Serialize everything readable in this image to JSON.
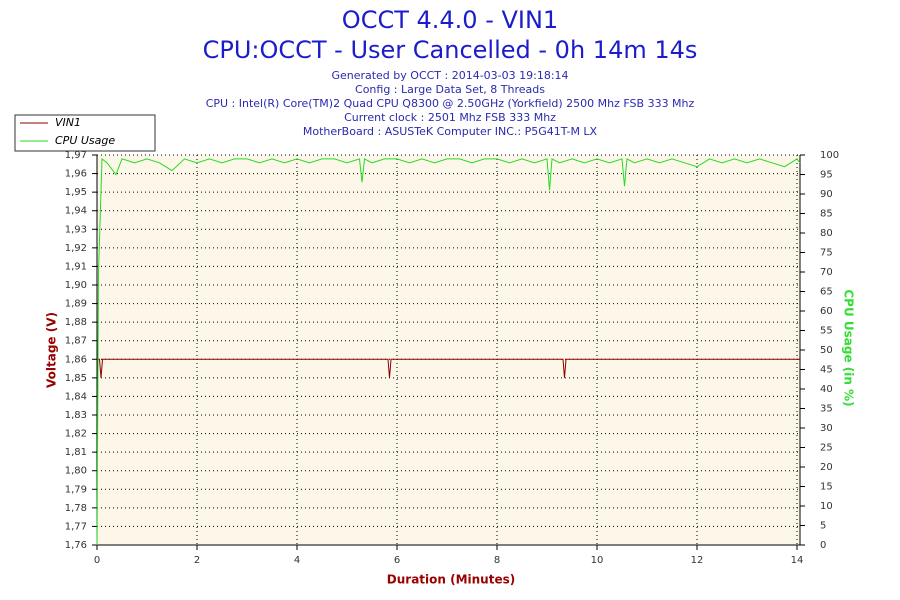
{
  "chart_data": {
    "type": "line",
    "title": "OCCT 4.4.0 - VIN1",
    "subtitle": "CPU:OCCT - User Cancelled - 0h 14m 14s",
    "info": [
      "Generated by OCCT : 2014-03-03 19:18:14",
      "Config : Large Data Set, 8 Threads",
      "CPU : Intel(R) Core(TM)2 Quad CPU Q8300 @ 2.50GHz (Yorkfield) 2500 Mhz FSB 333 Mhz",
      "Current clock : 2501 Mhz FSB 333 Mhz",
      "MotherBoard : ASUSTeK Computer INC.: P5G41T-M LX"
    ],
    "xlabel": "Duration (Minutes)",
    "ylabel": "Voltage (V)",
    "y2label": "CPU Usage (in %)",
    "xlim": [
      0,
      14.06
    ],
    "xticks": [
      0,
      2,
      4,
      6,
      8,
      10,
      12,
      14
    ],
    "ylim": [
      1.76,
      1.97
    ],
    "yticks": [
      {
        "value": 1.76,
        "label": "1,76"
      },
      {
        "value": 1.77,
        "label": "1,77"
      },
      {
        "value": 1.78,
        "label": "1,78"
      },
      {
        "value": 1.79,
        "label": "1,79"
      },
      {
        "value": 1.8,
        "label": "1,80"
      },
      {
        "value": 1.81,
        "label": "1,81"
      },
      {
        "value": 1.82,
        "label": "1,82"
      },
      {
        "value": 1.83,
        "label": "1,83"
      },
      {
        "value": 1.84,
        "label": "1,84"
      },
      {
        "value": 1.85,
        "label": "1,85"
      },
      {
        "value": 1.86,
        "label": "1,86"
      },
      {
        "value": 1.87,
        "label": "1,87"
      },
      {
        "value": 1.88,
        "label": "1,88"
      },
      {
        "value": 1.89,
        "label": "1,89"
      },
      {
        "value": 1.9,
        "label": "1,90"
      },
      {
        "value": 1.91,
        "label": "1,91"
      },
      {
        "value": 1.92,
        "label": "1,92"
      },
      {
        "value": 1.93,
        "label": "1,93"
      },
      {
        "value": 1.94,
        "label": "1,94"
      },
      {
        "value": 1.95,
        "label": "1,95"
      },
      {
        "value": 1.96,
        "label": "1,96"
      },
      {
        "value": 1.97,
        "label": "1,97"
      }
    ],
    "y2lim": [
      0,
      100
    ],
    "y2ticks": [
      0,
      5,
      10,
      15,
      20,
      25,
      30,
      35,
      40,
      45,
      50,
      55,
      60,
      65,
      70,
      75,
      80,
      85,
      90,
      95,
      100
    ],
    "grid": true,
    "legend": "top-left",
    "series": [
      {
        "name": "VIN1",
        "color": "#8b0000",
        "axis": "y",
        "x": [
          0,
          0.05,
          0.08,
          0.11,
          5.82,
          5.85,
          5.88,
          9.32,
          9.35,
          9.38,
          14.06
        ],
        "values": [
          1.86,
          1.86,
          1.85,
          1.86,
          1.86,
          1.85,
          1.86,
          1.86,
          1.85,
          1.86,
          1.86
        ]
      },
      {
        "name": "CPU Usage",
        "color": "#22dd22",
        "axis": "y2",
        "x": [
          0,
          0.03,
          0.1,
          0.2,
          0.38,
          0.5,
          0.75,
          1,
          1.25,
          1.5,
          1.75,
          2,
          2.25,
          2.5,
          2.75,
          3,
          3.25,
          3.5,
          3.75,
          4,
          4.25,
          4.5,
          4.75,
          5,
          5.25,
          5.3,
          5.35,
          5.5,
          5.75,
          6,
          6.25,
          6.5,
          6.75,
          7,
          7.25,
          7.5,
          7.75,
          8,
          8.25,
          8.5,
          8.75,
          9,
          9.05,
          9.1,
          9.25,
          9.5,
          9.75,
          10,
          10.25,
          10.5,
          10.55,
          10.6,
          10.75,
          11,
          11.25,
          11.5,
          11.75,
          12,
          12.25,
          12.5,
          12.75,
          13,
          13.25,
          13.5,
          13.75,
          14,
          14.06
        ],
        "values": [
          0,
          70,
          99,
          98,
          95,
          99,
          98,
          99,
          98,
          96,
          99,
          98,
          99,
          98,
          99,
          99,
          98,
          99,
          98,
          99,
          98,
          99,
          99,
          98,
          99,
          93,
          99,
          98,
          99,
          99,
          98,
          99,
          98,
          99,
          99,
          98,
          99,
          99,
          98,
          99,
          98,
          99,
          91,
          99,
          98,
          99,
          98,
          99,
          98,
          99,
          92,
          99,
          98,
          99,
          98,
          99,
          98,
          97,
          99,
          98,
          99,
          98,
          99,
          98,
          97,
          99,
          98
        ]
      }
    ]
  }
}
